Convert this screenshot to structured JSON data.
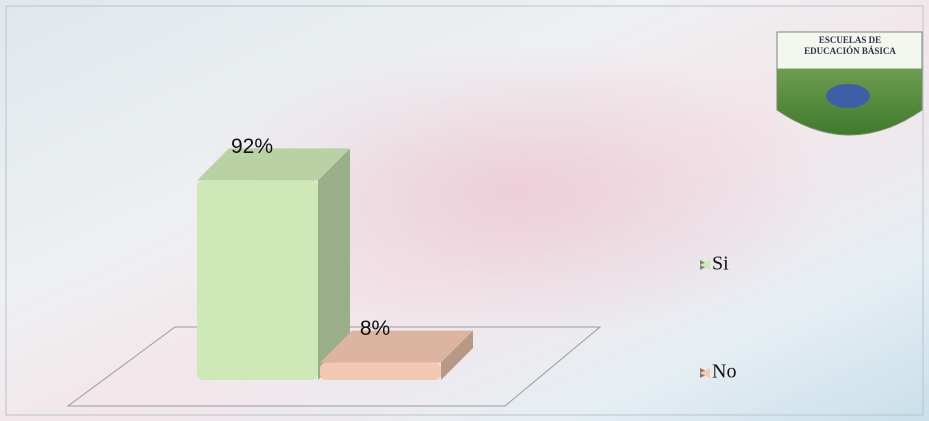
{
  "chart_data": {
    "type": "bar3d",
    "categories": [
      "Si",
      "No"
    ],
    "values": [
      92,
      8
    ],
    "value_labels": [
      "92%",
      "8%"
    ],
    "colors": [
      "#cfe8b8",
      "#f4c9b3"
    ],
    "legend": "right"
  },
  "logo": {
    "lines": [
      "ESCUELAS DE",
      "EDUCACIÓN BÁSICA"
    ]
  }
}
